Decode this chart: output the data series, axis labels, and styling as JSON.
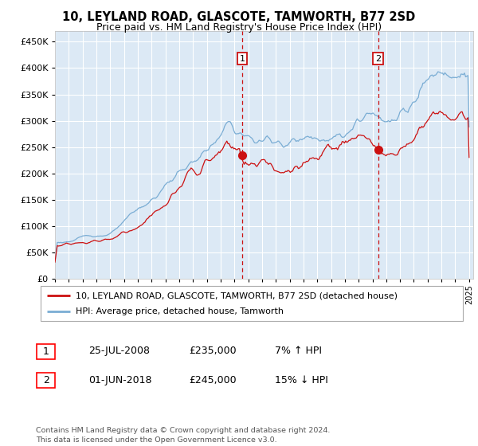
{
  "title": "10, LEYLAND ROAD, GLASCOTE, TAMWORTH, B77 2SD",
  "subtitle": "Price paid vs. HM Land Registry's House Price Index (HPI)",
  "ylim": [
    0,
    470000
  ],
  "yticks": [
    0,
    50000,
    100000,
    150000,
    200000,
    250000,
    300000,
    350000,
    400000,
    450000
  ],
  "year_start": 1995,
  "year_end": 2025,
  "background_color": "#ffffff",
  "plot_bg_color": "#dce9f5",
  "grid_color": "#ffffff",
  "hpi_color": "#7aadd4",
  "price_color": "#cc1111",
  "sale1_year": 2008.57,
  "sale1_price": 235000,
  "sale2_year": 2018.42,
  "sale2_price": 245000,
  "legend_line1": "10, LEYLAND ROAD, GLASCOTE, TAMWORTH, B77 2SD (detached house)",
  "legend_line2": "HPI: Average price, detached house, Tamworth",
  "sale1_date": "25-JUL-2008",
  "sale1_amount": "£235,000",
  "sale1_hpi": "7% ↑ HPI",
  "sale2_date": "01-JUN-2018",
  "sale2_amount": "£245,000",
  "sale2_hpi": "15% ↓ HPI",
  "footer": "Contains HM Land Registry data © Crown copyright and database right 2024.\nThis data is licensed under the Open Government Licence v3.0."
}
